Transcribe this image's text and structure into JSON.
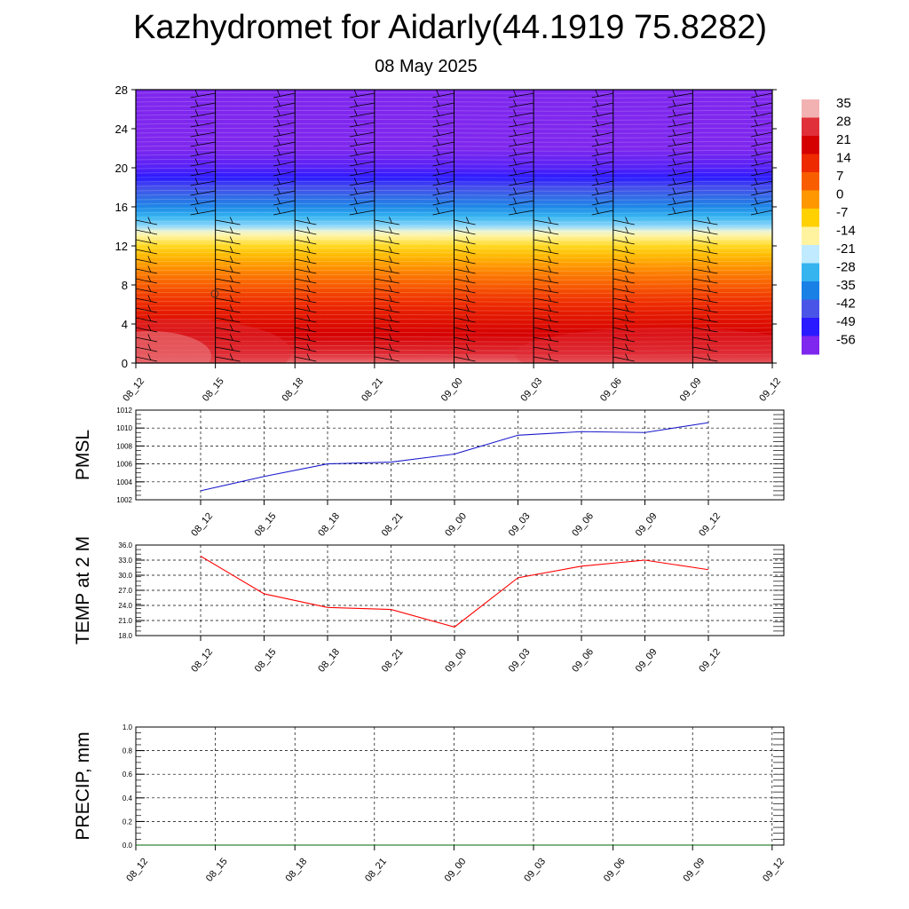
{
  "title": "Kazhydromet for Aidarly(44.1919 75.8282)",
  "subtitle": "08 May 2025",
  "chart_data": [
    {
      "type": "heatmap",
      "name": "vertical-temperature-profile",
      "x_labels": [
        "08_12",
        "08_15",
        "08_18",
        "08_21",
        "09_00",
        "09_03",
        "09_06",
        "09_09",
        "09_12"
      ],
      "y_ticks": [
        0,
        4,
        8,
        12,
        16,
        20,
        24,
        28
      ],
      "ylim": [
        0,
        28
      ],
      "colorbar_labels": [
        "35",
        "28",
        "21",
        "14",
        "7",
        "0",
        "-7",
        "-14",
        "-21",
        "-28",
        "-35",
        "-42",
        "-49",
        "-56"
      ],
      "colorbar_colors": [
        "#f2b2b2",
        "#e0303a",
        "#d50000",
        "#ee2a00",
        "#f85e00",
        "#ff9800",
        "#ffd100",
        "#fff3a0",
        "#bfeaff",
        "#35b4f0",
        "#1980e6",
        "#4a55e8",
        "#2a1aff",
        "#7f27ee"
      ],
      "temperature_profile": {
        "height": [
          0,
          1,
          2,
          3,
          4,
          5,
          6,
          7,
          8,
          9,
          10,
          11,
          12,
          13,
          13.5,
          14,
          15,
          16,
          17,
          18,
          19,
          20,
          21,
          22,
          23,
          24,
          26,
          28
        ],
        "temp": [
          33,
          30,
          27,
          24,
          21,
          18,
          14,
          11,
          7,
          4,
          0,
          -4,
          -8,
          -12,
          -14,
          -20,
          -28,
          -34,
          -40,
          -46,
          -52,
          -56,
          -58,
          -60,
          -62,
          -64,
          -66,
          -68
        ]
      },
      "wind_barbs": "present at each time column"
    },
    {
      "type": "line",
      "name": "pmsl",
      "ylabel": "PMSL",
      "x": [
        "08_12",
        "08_15",
        "08_18",
        "08_21",
        "09_00",
        "09_03",
        "09_06",
        "09_09",
        "09_12"
      ],
      "ylim": [
        1002,
        1012
      ],
      "y_ticks": [
        "1002",
        "1004",
        "1006",
        "1008",
        "1010",
        "1012"
      ],
      "series": [
        {
          "values": [
            1003.0,
            1004.6,
            1006.0,
            1006.2,
            1007.1,
            1009.2,
            1009.6,
            1009.5,
            1010.6
          ],
          "color": "#1a1acc"
        }
      ]
    },
    {
      "type": "line",
      "name": "temp-2m",
      "ylabel": "TEMP at 2 M",
      "x": [
        "08_12",
        "08_15",
        "08_18",
        "08_21",
        "09_00",
        "09_03",
        "09_06",
        "09_09",
        "09_12"
      ],
      "ylim": [
        18,
        36
      ],
      "y_ticks": [
        "18.0",
        "21.0",
        "24.0",
        "27.0",
        "30.0",
        "33.0",
        "36.0"
      ],
      "series": [
        {
          "values": [
            33.8,
            26.3,
            23.6,
            23.2,
            19.7,
            29.5,
            31.8,
            33.0,
            31.1
          ],
          "color": "#ff0000"
        }
      ]
    },
    {
      "type": "line",
      "name": "precip",
      "ylabel": "PRECIP, mm",
      "x": [
        "08_12",
        "08_15",
        "08_18",
        "08_21",
        "09_00",
        "09_03",
        "09_06",
        "09_09",
        "09_12"
      ],
      "ylim": [
        0,
        1
      ],
      "y_ticks": [
        "0.0",
        "0.2",
        "0.4",
        "0.6",
        "0.8",
        "1.0"
      ],
      "series": [
        {
          "values": [
            0,
            0,
            0,
            0,
            0,
            0,
            0,
            0,
            0
          ],
          "color": "#006400"
        }
      ]
    }
  ]
}
